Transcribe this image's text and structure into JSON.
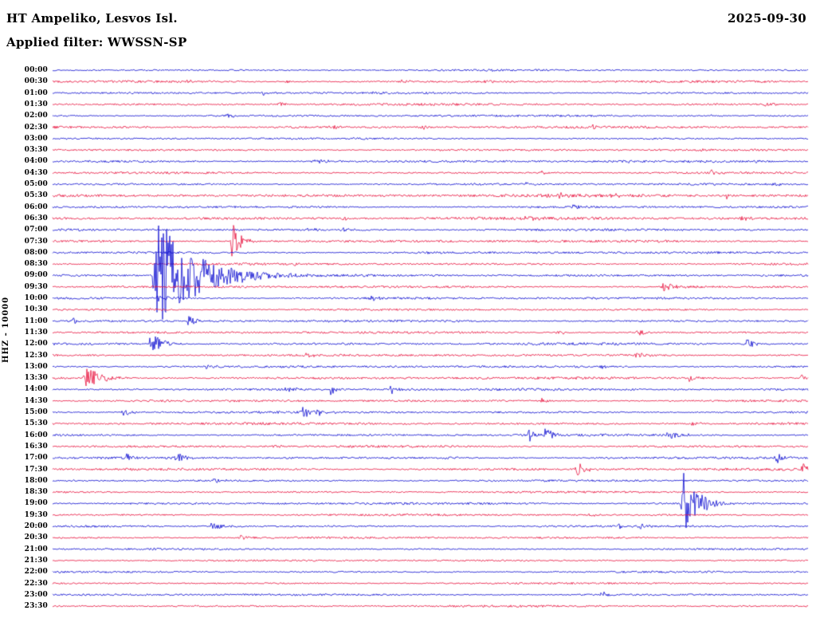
{
  "header": {
    "station_title": "HT Ampeliko, Lesvos Isl.",
    "date": "2025-09-30",
    "filter_label": "Applied filter: WWSSN-SP"
  },
  "y_axis_label": "HHZ - 10000",
  "colors": {
    "trace_blue": "#0b0bd0",
    "trace_red": "#e8103c",
    "background": "#ffffff",
    "text": "#000000"
  },
  "chart_data": {
    "type": "line",
    "subtype": "helicorder-seismogram",
    "title": "HT Ampeliko, Lesvos Isl.",
    "date": "2025-09-30",
    "filter": "WWSSN-SP",
    "ylabel": "HHZ - 10000",
    "row_interval_minutes": 30,
    "rows_per_day": 48,
    "x_range_minutes": [
      0,
      30
    ],
    "grid": false,
    "legend": "none",
    "event_format": "[position_fraction_of_row, amplitude_px, decay_fraction]",
    "rows": [
      {
        "time": "00:00",
        "color": "blue",
        "noise": 0.8,
        "events": [
          [
            0.574,
            2,
            0.008
          ]
        ]
      },
      {
        "time": "00:30",
        "color": "red",
        "noise": 1.0,
        "events": [
          [
            0.178,
            2.5,
            0.008
          ],
          [
            0.31,
            2,
            0.008
          ],
          [
            0.463,
            3,
            0.006
          ],
          [
            0.574,
            2,
            0.008
          ]
        ]
      },
      {
        "time": "01:00",
        "color": "blue",
        "noise": 0.9,
        "events": [
          [
            0.278,
            3,
            0.01
          ],
          [
            0.426,
            2,
            0.008
          ]
        ]
      },
      {
        "time": "01:30",
        "color": "red",
        "noise": 1.0,
        "events": [
          [
            0.3,
            2.5,
            0.015
          ],
          [
            0.943,
            3.5,
            0.012
          ]
        ]
      },
      {
        "time": "02:00",
        "color": "blue",
        "noise": 0.9,
        "events": [
          [
            0.231,
            3,
            0.01
          ],
          [
            0.869,
            2,
            0.008
          ]
        ]
      },
      {
        "time": "02:30",
        "color": "red",
        "noise": 1.1,
        "events": [
          [
            0.11,
            2.5,
            0.008
          ],
          [
            0.368,
            3.5,
            0.01
          ],
          [
            0.489,
            3,
            0.01
          ],
          [
            0.716,
            3,
            0.01
          ]
        ]
      },
      {
        "time": "03:00",
        "color": "blue",
        "noise": 0.8,
        "events": []
      },
      {
        "time": "03:30",
        "color": "red",
        "noise": 0.9,
        "events": [
          [
            0.859,
            2,
            0.008
          ]
        ]
      },
      {
        "time": "04:00",
        "color": "blue",
        "noise": 1.0,
        "events": [
          [
            0.345,
            5,
            0.018
          ],
          [
            0.764,
            2.5,
            0.008
          ],
          [
            0.93,
            2.5,
            0.008
          ]
        ]
      },
      {
        "time": "04:30",
        "color": "red",
        "noise": 0.9,
        "events": [
          [
            0.648,
            2.5,
            0.008
          ],
          [
            0.872,
            3.5,
            0.01
          ]
        ]
      },
      {
        "time": "05:00",
        "color": "blue",
        "noise": 0.9,
        "events": [
          [
            0.627,
            2,
            0.008
          ],
          [
            0.954,
            3,
            0.01
          ]
        ]
      },
      {
        "time": "05:30",
        "color": "red",
        "noise": 1.4,
        "events": [
          [
            0.126,
            3,
            0.01
          ],
          [
            0.669,
            3,
            0.01
          ],
          [
            0.737,
            3,
            0.01
          ],
          [
            0.892,
            3.5,
            0.01
          ]
        ]
      },
      {
        "time": "06:00",
        "color": "blue",
        "noise": 1.0,
        "events": [
          [
            0.173,
            2,
            0.008
          ],
          [
            0.69,
            3.5,
            0.01
          ]
        ]
      },
      {
        "time": "06:30",
        "color": "red",
        "noise": 1.3,
        "events": [
          [
            0.384,
            2.5,
            0.008
          ],
          [
            0.627,
            3,
            0.01
          ],
          [
            0.911,
            3,
            0.01
          ]
        ]
      },
      {
        "time": "07:00",
        "color": "blue",
        "noise": 1.0,
        "events": [
          [
            0.337,
            3,
            0.008
          ],
          [
            0.384,
            3.5,
            0.01
          ]
        ]
      },
      {
        "time": "07:30",
        "color": "red",
        "noise": 1.1,
        "events": [
          [
            0.238,
            25,
            0.01
          ]
        ]
      },
      {
        "time": "08:00",
        "color": "blue",
        "noise": 1.0,
        "events": [
          [
            0.49,
            2,
            0.008
          ]
        ]
      },
      {
        "time": "08:30",
        "color": "red",
        "noise": 1.0,
        "events": [
          [
            0.32,
            2,
            0.008
          ]
        ]
      },
      {
        "time": "09:00",
        "color": "blue",
        "noise": 1.1,
        "events": [
          [
            0.136,
            78,
            0.05
          ]
        ]
      },
      {
        "time": "09:30",
        "color": "red",
        "noise": 1.0,
        "events": [
          [
            0.808,
            6,
            0.018
          ]
        ]
      },
      {
        "time": "10:00",
        "color": "blue",
        "noise": 1.0,
        "events": [
          [
            0.14,
            4,
            0.015
          ],
          [
            0.421,
            4,
            0.008
          ]
        ]
      },
      {
        "time": "10:30",
        "color": "red",
        "noise": 0.9,
        "events": [
          [
            0.13,
            2.5,
            0.008
          ]
        ]
      },
      {
        "time": "11:00",
        "color": "blue",
        "noise": 1.0,
        "events": [
          [
            0.028,
            5,
            0.006
          ],
          [
            0.18,
            8,
            0.01
          ]
        ]
      },
      {
        "time": "11:30",
        "color": "red",
        "noise": 1.0,
        "events": [
          [
            0.669,
            4,
            0.01
          ],
          [
            0.774,
            4.5,
            0.012
          ]
        ]
      },
      {
        "time": "12:00",
        "color": "blue",
        "noise": 1.1,
        "events": [
          [
            0.131,
            18,
            0.012
          ],
          [
            0.917,
            10,
            0.01
          ]
        ]
      },
      {
        "time": "12:30",
        "color": "red",
        "noise": 1.0,
        "events": [
          [
            0.337,
            3,
            0.008
          ],
          [
            0.774,
            5,
            0.01
          ]
        ]
      },
      {
        "time": "13:00",
        "color": "blue",
        "noise": 1.0,
        "events": [
          [
            0.205,
            4,
            0.008
          ],
          [
            0.727,
            3,
            0.008
          ]
        ]
      },
      {
        "time": "13:30",
        "color": "red",
        "noise": 1.1,
        "events": [
          [
            0.044,
            16,
            0.018
          ],
          [
            0.843,
            4,
            0.01
          ],
          [
            0.99,
            4,
            0.008
          ]
        ]
      },
      {
        "time": "14:00",
        "color": "blue",
        "noise": 1.1,
        "events": [
          [
            0.31,
            5,
            0.01
          ],
          [
            0.368,
            6,
            0.01
          ],
          [
            0.447,
            7,
            0.01
          ]
        ]
      },
      {
        "time": "14:30",
        "color": "red",
        "noise": 1.0,
        "events": [
          [
            0.648,
            3,
            0.008
          ]
        ]
      },
      {
        "time": "15:00",
        "color": "blue",
        "noise": 1.0,
        "events": [
          [
            0.094,
            5,
            0.008
          ],
          [
            0.331,
            9,
            0.012
          ],
          [
            0.352,
            6,
            0.01
          ]
        ]
      },
      {
        "time": "15:30",
        "color": "red",
        "noise": 1.1,
        "events": [
          [
            0.848,
            3.5,
            0.01
          ]
        ]
      },
      {
        "time": "16:00",
        "color": "blue",
        "noise": 1.0,
        "events": [
          [
            0.632,
            9,
            0.008
          ],
          [
            0.653,
            11,
            0.01
          ],
          [
            0.816,
            7,
            0.012
          ]
        ]
      },
      {
        "time": "16:30",
        "color": "red",
        "noise": 1.0,
        "events": [
          [
            0.294,
            2.5,
            0.008
          ]
        ]
      },
      {
        "time": "17:00",
        "color": "blue",
        "noise": 1.0,
        "events": [
          [
            0.099,
            6,
            0.008
          ],
          [
            0.165,
            8,
            0.012
          ],
          [
            0.521,
            4,
            0.008
          ],
          [
            0.959,
            7,
            0.01
          ]
        ]
      },
      {
        "time": "17:30",
        "color": "red",
        "noise": 1.1,
        "events": [
          [
            0.695,
            8,
            0.01
          ],
          [
            0.993,
            9,
            0.01
          ]
        ]
      },
      {
        "time": "18:00",
        "color": "blue",
        "noise": 0.9,
        "events": [
          [
            0.215,
            3,
            0.01
          ]
        ]
      },
      {
        "time": "18:30",
        "color": "red",
        "noise": 0.9,
        "events": [
          [
            0.31,
            2,
            0.008
          ]
        ]
      },
      {
        "time": "19:00",
        "color": "blue",
        "noise": 1.0,
        "events": [
          [
            0.835,
            42,
            0.018
          ]
        ]
      },
      {
        "time": "19:30",
        "color": "red",
        "noise": 0.9,
        "events": [
          [
            0.711,
            2.5,
            0.008
          ]
        ]
      },
      {
        "time": "20:00",
        "color": "blue",
        "noise": 0.9,
        "events": [
          [
            0.21,
            5,
            0.018
          ],
          [
            0.748,
            3,
            0.008
          ],
          [
            0.779,
            3,
            0.008
          ]
        ]
      },
      {
        "time": "20:30",
        "color": "red",
        "noise": 0.9,
        "events": [
          [
            0.249,
            3.5,
            0.01
          ]
        ]
      },
      {
        "time": "21:00",
        "color": "blue",
        "noise": 0.8,
        "events": []
      },
      {
        "time": "21:30",
        "color": "red",
        "noise": 0.8,
        "events": []
      },
      {
        "time": "22:00",
        "color": "blue",
        "noise": 0.8,
        "events": []
      },
      {
        "time": "22:30",
        "color": "red",
        "noise": 0.8,
        "events": []
      },
      {
        "time": "23:00",
        "color": "blue",
        "noise": 0.9,
        "events": [
          [
            0.727,
            4,
            0.01
          ]
        ]
      },
      {
        "time": "23:30",
        "color": "red",
        "noise": 0.9,
        "events": []
      }
    ]
  }
}
